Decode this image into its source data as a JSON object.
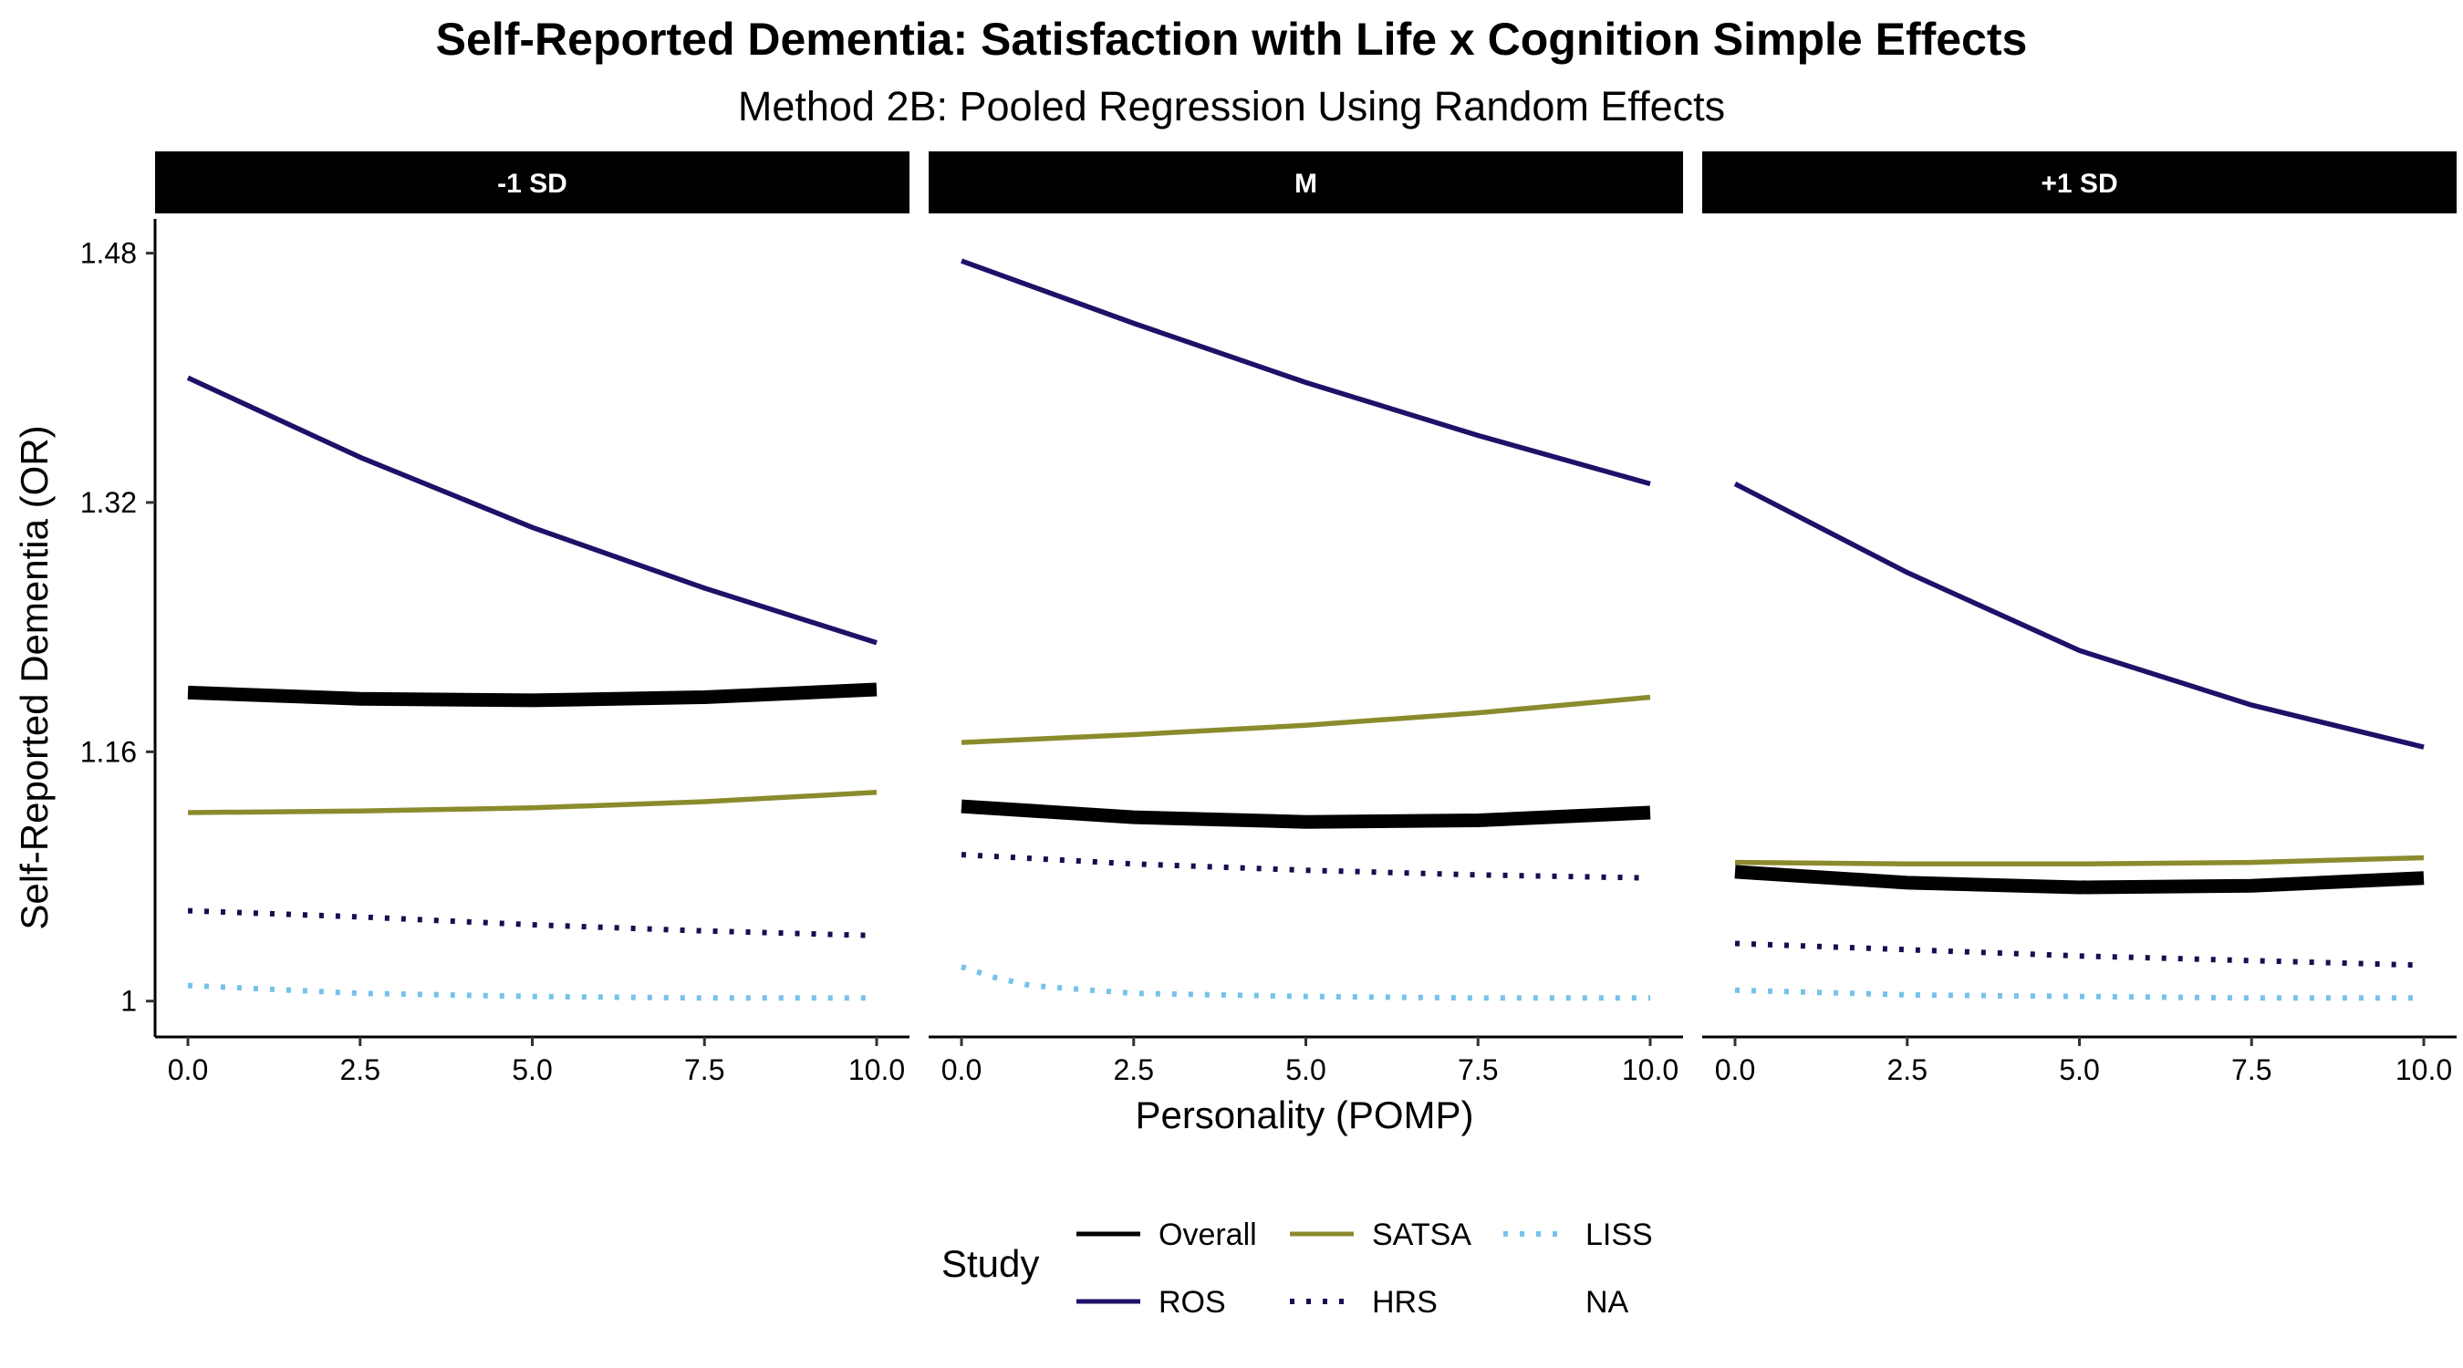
{
  "chart_data": {
    "type": "line",
    "title": "Self-Reported Dementia: Satisfaction with Life x Cognition Simple Effects",
    "subtitle": "Method 2B: Pooled Regression Using Random Effects",
    "xlabel": "Personality (POMP)",
    "ylabel": "Self-Reported Dementia (OR)",
    "xlim": [
      0,
      10
    ],
    "ylim": [
      0.977,
      1.502
    ],
    "x_ticks": [
      "0.0",
      "2.5",
      "5.0",
      "7.5",
      "10.0"
    ],
    "x_tick_values": [
      0,
      2.5,
      5,
      7.5,
      10
    ],
    "y_ticks": [
      "1",
      "1.16",
      "1.32",
      "1.48"
    ],
    "y_tick_values": [
      1,
      1.16,
      1.32,
      1.48
    ],
    "grid": false,
    "legend": {
      "title": "Study",
      "placement": "bottom",
      "items": [
        "Overall",
        "SATSA",
        "LISS",
        "ROS",
        "HRS",
        "NA"
      ]
    },
    "colors": {
      "Overall": "#000000",
      "ROS": "#1f1068",
      "SATSA": "#8b8b2e",
      "HRS": "#14104f",
      "LISS": "#76c2ea"
    },
    "panels": [
      {
        "label": "-1 SD",
        "series": [
          {
            "name": "Overall",
            "style": "solid",
            "weight": "thick",
            "x": [
              0,
              2.5,
              5,
              7.5,
              10
            ],
            "y": [
              1.198,
              1.194,
              1.193,
              1.195,
              1.2
            ]
          },
          {
            "name": "ROS",
            "style": "solid",
            "weight": "normal",
            "x": [
              0,
              2.5,
              5,
              7.5,
              10
            ],
            "y": [
              1.4,
              1.349,
              1.304,
              1.265,
              1.23
            ]
          },
          {
            "name": "SATSA",
            "style": "solid",
            "weight": "normal",
            "x": [
              0,
              2.5,
              5,
              7.5,
              10
            ],
            "y": [
              1.121,
              1.122,
              1.124,
              1.128,
              1.134
            ]
          },
          {
            "name": "HRS",
            "style": "dotted",
            "weight": "normal",
            "x": [
              0,
              2.5,
              5,
              7.5,
              10
            ],
            "y": [
              1.058,
              1.054,
              1.049,
              1.045,
              1.042
            ]
          },
          {
            "name": "LISS",
            "style": "dotted",
            "weight": "normal",
            "x": [
              0,
              2.5,
              5,
              7.5,
              10
            ],
            "y": [
              1.01,
              1.005,
              1.003,
              1.002,
              1.002
            ]
          }
        ]
      },
      {
        "label": "M",
        "series": [
          {
            "name": "Overall",
            "style": "solid",
            "weight": "thick",
            "x": [
              0,
              2.5,
              5,
              7.5,
              10
            ],
            "y": [
              1.125,
              1.118,
              1.115,
              1.116,
              1.121
            ]
          },
          {
            "name": "ROS",
            "style": "solid",
            "weight": "normal",
            "x": [
              0,
              2.5,
              5,
              7.5,
              10
            ],
            "y": [
              1.475,
              1.435,
              1.397,
              1.363,
              1.332
            ]
          },
          {
            "name": "SATSA",
            "style": "solid",
            "weight": "normal",
            "x": [
              0,
              2.5,
              5,
              7.5,
              10
            ],
            "y": [
              1.166,
              1.171,
              1.177,
              1.185,
              1.195
            ]
          },
          {
            "name": "HRS",
            "style": "dotted",
            "weight": "normal",
            "x": [
              0,
              2.5,
              5,
              7.5,
              10
            ],
            "y": [
              1.094,
              1.088,
              1.084,
              1.081,
              1.079
            ]
          },
          {
            "name": "LISS",
            "style": "dotted",
            "weight": "normal",
            "x": [
              0,
              0.5,
              1,
              2.5,
              5,
              7.5,
              10
            ],
            "y": [
              1.022,
              1.015,
              1.01,
              1.005,
              1.003,
              1.002,
              1.002
            ]
          }
        ]
      },
      {
        "label": "+1 SD",
        "series": [
          {
            "name": "Overall",
            "style": "solid",
            "weight": "thick",
            "x": [
              0,
              2.5,
              5,
              7.5,
              10
            ],
            "y": [
              1.083,
              1.076,
              1.073,
              1.074,
              1.079
            ]
          },
          {
            "name": "ROS",
            "style": "solid",
            "weight": "normal",
            "x": [
              0,
              2.5,
              5,
              7.5,
              10
            ],
            "y": [
              1.332,
              1.275,
              1.225,
              1.19,
              1.163
            ]
          },
          {
            "name": "SATSA",
            "style": "solid",
            "weight": "normal",
            "x": [
              0,
              2.5,
              5,
              7.5,
              10
            ],
            "y": [
              1.089,
              1.088,
              1.088,
              1.089,
              1.092
            ]
          },
          {
            "name": "HRS",
            "style": "dotted",
            "weight": "normal",
            "x": [
              0,
              2.5,
              5,
              7.5,
              10
            ],
            "y": [
              1.037,
              1.033,
              1.029,
              1.026,
              1.023
            ]
          },
          {
            "name": "LISS",
            "style": "dotted",
            "weight": "normal",
            "x": [
              0,
              2.5,
              5,
              7.5,
              10
            ],
            "y": [
              1.007,
              1.004,
              1.003,
              1.002,
              1.002
            ]
          }
        ]
      }
    ]
  }
}
